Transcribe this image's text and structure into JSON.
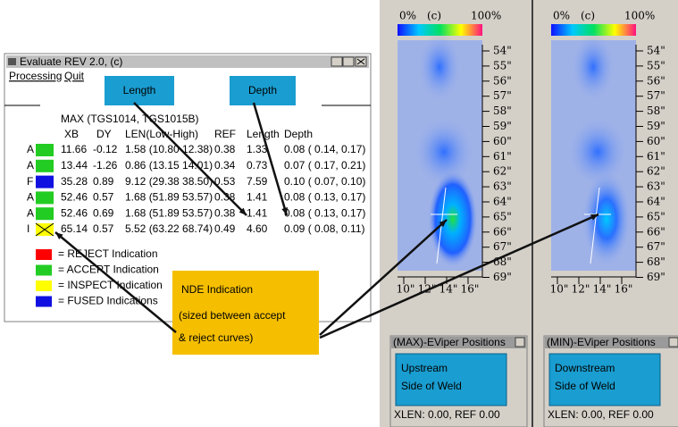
{
  "window": {
    "title": "Evaluate REV 2.0, (c)",
    "menu": [
      "Processing",
      "Quit"
    ],
    "table_title": "MAX (TGS1014, TGS1015B)",
    "columns": [
      "XB",
      "DY",
      "LEN(Low-High)",
      "REF",
      "Length",
      "Depth"
    ],
    "rows": [
      {
        "flag": "A",
        "color": "#22cc22",
        "cells": [
          "11.66",
          "-0.12",
          "1.58 (10.80 12.38)",
          "0.38",
          "1.33",
          "0.08 ( 0.14, 0.17)"
        ]
      },
      {
        "flag": "A",
        "color": "#22cc22",
        "cells": [
          "13.44",
          "-1.26",
          "0.86 (13.15 14.01)",
          "0.34",
          "0.73",
          "0.07 ( 0.17, 0.21)"
        ]
      },
      {
        "flag": "F",
        "color": "#1010e0",
        "cells": [
          "35.28",
          "0.89",
          "9.12 (29.38 38.50)",
          "0.53",
          "7.59",
          "0.10 ( 0.07, 0.10)"
        ]
      },
      {
        "flag": "A",
        "color": "#22cc22",
        "cells": [
          "52.46",
          "0.57",
          "1.68 (51.89 53.57)",
          "0.38",
          "1.41",
          "0.08 ( 0.13, 0.17)"
        ]
      },
      {
        "flag": "A",
        "color": "#22cc22",
        "cells": [
          "52.46",
          "0.69",
          "1.68 (51.89 53.57)",
          "0.38",
          "1.41",
          "0.08 ( 0.13, 0.17)"
        ]
      },
      {
        "flag": "I",
        "color": "#ffff00",
        "cells": [
          "65.14",
          "0.57",
          "5.52 (63.22 68.74)",
          "0.49",
          "4.60",
          "0.09 ( 0.08, 0.11)"
        ]
      }
    ],
    "legend": [
      {
        "color": "#ff0000",
        "label": "= REJECT Indication"
      },
      {
        "color": "#22cc22",
        "label": "= ACCEPT Indication"
      },
      {
        "color": "#ffff00",
        "label": "= INSPECT Indication"
      },
      {
        "color": "#1010e0",
        "label": "= FUSED Indications"
      }
    ]
  },
  "callouts": {
    "length": "Length",
    "depth": "Depth",
    "nde_title": "NDE Indication",
    "nde_lines": [
      "(sized between accept",
      "& reject curves)"
    ]
  },
  "scan": {
    "scale_labels": [
      "0%",
      "(c)",
      "100%"
    ],
    "depth_labels": [
      "54\"",
      "55\"",
      "56\"",
      "57\"",
      "58\"",
      "59\"",
      "60\"",
      "61\"",
      "62\"",
      "63\"",
      "64\"",
      "65\"",
      "66\"",
      "67\"",
      "68\"",
      "69\""
    ],
    "x_labels": [
      "10\"",
      "12\"",
      "14\"",
      "16\""
    ],
    "panels": [
      {
        "window_title": "(MAX)-EViper Positions",
        "callout": [
          "Upstream",
          "Side of Weld"
        ],
        "status": "XLEN: 0.00, REF 0.00"
      },
      {
        "window_title": "(MIN)-EViper Positions",
        "callout": [
          "Downstream",
          "Side of Weld"
        ],
        "status": "XLEN: 0.00, REF 0.00"
      }
    ]
  }
}
